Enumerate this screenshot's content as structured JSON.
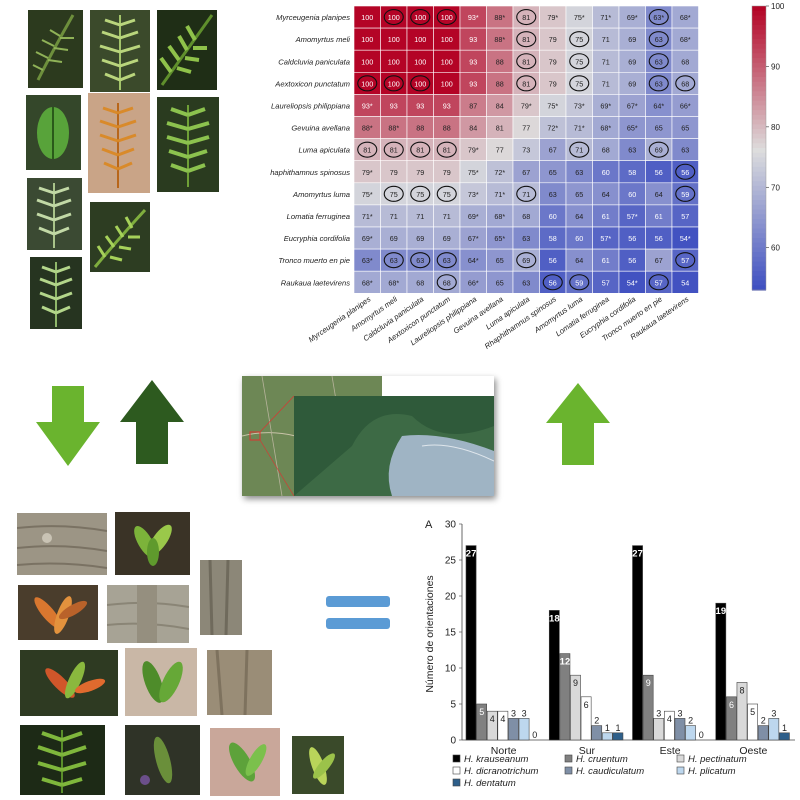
{
  "heatmap": {
    "rows": [
      "Myrceugenia planipes",
      "Amomyrtus meli",
      "Caldcluvia paniculata",
      "Aextoxicon punctatum",
      "Laureliopsis philippiana",
      "Gevuina avellana",
      "Luma apiculata",
      "Rhaphithamnus spinosus",
      "Amomyrtus luma",
      "Lomatia ferruginea",
      "Eucryphia cordifolia",
      "Tronco muerto en pie",
      "Raukaua laetevirens"
    ],
    "cols": [
      "Myrceugenia planipes",
      "Amomyrtus meli",
      "Caldcluvia paniculata",
      "Aextoxicon punctatum",
      "Laureliopsis philippiana",
      "Gevuina avellana",
      "Luma apiculata",
      "Rhaphithamnus spinosus",
      "Amomyrtus luma",
      "Lomatia ferruginea",
      "Eucryphia cordifolia",
      "Tronco muerto en pie",
      "Raukaua laetevirens"
    ],
    "cells": [
      [
        "100",
        "100",
        "100",
        "100",
        "93*",
        "88*",
        "81",
        "79*",
        "75*",
        "71*",
        "69*",
        "63*",
        "68*"
      ],
      [
        "100",
        "100",
        "100",
        "100",
        "93",
        "88*",
        "81",
        "79",
        "75",
        "71",
        "69",
        "63",
        "68*"
      ],
      [
        "100",
        "100",
        "100",
        "100",
        "93",
        "88",
        "81",
        "79",
        "75",
        "71",
        "69",
        "63",
        "68"
      ],
      [
        "100",
        "100",
        "100",
        "100",
        "93",
        "88",
        "81",
        "79",
        "75",
        "71",
        "69",
        "63",
        "68"
      ],
      [
        "93*",
        "93",
        "93",
        "93",
        "87",
        "84",
        "79*",
        "75*",
        "73*",
        "69*",
        "67*",
        "64*",
        "66*"
      ],
      [
        "88*",
        "88*",
        "88",
        "88",
        "84",
        "81",
        "77",
        "72*",
        "71*",
        "68*",
        "65*",
        "65",
        "65"
      ],
      [
        "81",
        "81",
        "81",
        "81",
        "79*",
        "77",
        "73",
        "67",
        "71",
        "68",
        "63",
        "69",
        "63"
      ],
      [
        "79*",
        "79",
        "79",
        "79",
        "75*",
        "72*",
        "67",
        "65",
        "63",
        "60",
        "58",
        "56",
        "56"
      ],
      [
        "75*",
        "75",
        "75",
        "75",
        "73*",
        "71*",
        "71",
        "63",
        "65",
        "64",
        "60",
        "64",
        "59"
      ],
      [
        "71*",
        "71",
        "71",
        "71",
        "69*",
        "68*",
        "68",
        "60",
        "64",
        "61",
        "57*",
        "61",
        "57"
      ],
      [
        "69*",
        "69",
        "69",
        "69",
        "67*",
        "65*",
        "63",
        "58",
        "60",
        "57*",
        "56",
        "56",
        "54*"
      ],
      [
        "63*",
        "63",
        "63",
        "63",
        "64*",
        "65",
        "69",
        "56",
        "64",
        "61",
        "56",
        "67",
        "57"
      ],
      [
        "68*",
        "68*",
        "68",
        "68",
        "66*",
        "65",
        "63",
        "56",
        "59",
        "57",
        "54*",
        "57",
        "54"
      ]
    ],
    "circled": [
      [
        0,
        1
      ],
      [
        0,
        2
      ],
      [
        0,
        3
      ],
      [
        0,
        6
      ],
      [
        0,
        11
      ],
      [
        1,
        6
      ],
      [
        1,
        8
      ],
      [
        1,
        11
      ],
      [
        2,
        6
      ],
      [
        2,
        8
      ],
      [
        2,
        11
      ],
      [
        3,
        0
      ],
      [
        3,
        1
      ],
      [
        3,
        2
      ],
      [
        3,
        6
      ],
      [
        3,
        8
      ],
      [
        3,
        11
      ],
      [
        3,
        12
      ],
      [
        6,
        0
      ],
      [
        6,
        1
      ],
      [
        6,
        2
      ],
      [
        6,
        3
      ],
      [
        6,
        8
      ],
      [
        6,
        11
      ],
      [
        7,
        12
      ],
      [
        8,
        1
      ],
      [
        8,
        2
      ],
      [
        8,
        3
      ],
      [
        8,
        6
      ],
      [
        8,
        12
      ],
      [
        11,
        1
      ],
      [
        11,
        2
      ],
      [
        11,
        3
      ],
      [
        11,
        6
      ],
      [
        11,
        12
      ],
      [
        12,
        3
      ],
      [
        12,
        7
      ],
      [
        12,
        8
      ],
      [
        12,
        11
      ]
    ],
    "colorbar_ticks": [
      "100",
      "90",
      "80",
      "70",
      "60"
    ],
    "vmin": 53,
    "vmax": 100,
    "colors": {
      "high": "#b40426",
      "mid": "#dddddd",
      "low": "#3b4cc0"
    }
  },
  "bar_chart": {
    "panel_letter": "A",
    "ylabel": "Número de orientaciones",
    "categories": [
      "Norte",
      "Sur",
      "Este",
      "Oeste"
    ],
    "ylim": [
      0,
      30
    ],
    "yticks": [
      "0",
      "5",
      "10",
      "15",
      "20",
      "25",
      "30"
    ],
    "series": [
      {
        "name": "H. krauseanum",
        "values": [
          27,
          18,
          27,
          19
        ],
        "color": "#000000"
      },
      {
        "name": "H. cruentum",
        "values": [
          5,
          12,
          9,
          6
        ],
        "color": "#808080"
      },
      {
        "name": "H. pectinatum",
        "values": [
          4,
          9,
          3,
          8
        ],
        "color": "#d9d9d9"
      },
      {
        "name": "H. dicranotrichum",
        "values": [
          4,
          6,
          4,
          5
        ],
        "color": "#ffffff"
      },
      {
        "name": "H. caudiculatum",
        "values": [
          3,
          2,
          3,
          2
        ],
        "color": "#7f8fa6"
      },
      {
        "name": "H. plicatum",
        "values": [
          3,
          1,
          2,
          3
        ],
        "color": "#bdd7ee"
      },
      {
        "name": "H. dentatum",
        "values": [
          0,
          1,
          0,
          1
        ],
        "color": "#2e5f8a"
      }
    ],
    "labels": [
      [
        "27",
        "5",
        "4",
        "4",
        "3",
        "3",
        "0"
      ],
      [
        "18",
        "12",
        "9",
        "6",
        "2",
        "1",
        "1"
      ],
      [
        "27",
        "9",
        "3",
        "4",
        "3",
        "2",
        "0"
      ],
      [
        "19",
        "6",
        "8",
        "5",
        "2",
        "3",
        "1"
      ]
    ]
  },
  "colors": {
    "arrow_light": "#6ab42e",
    "arrow_dark": "#2d5a1f",
    "equals": "#5b9bd5"
  }
}
